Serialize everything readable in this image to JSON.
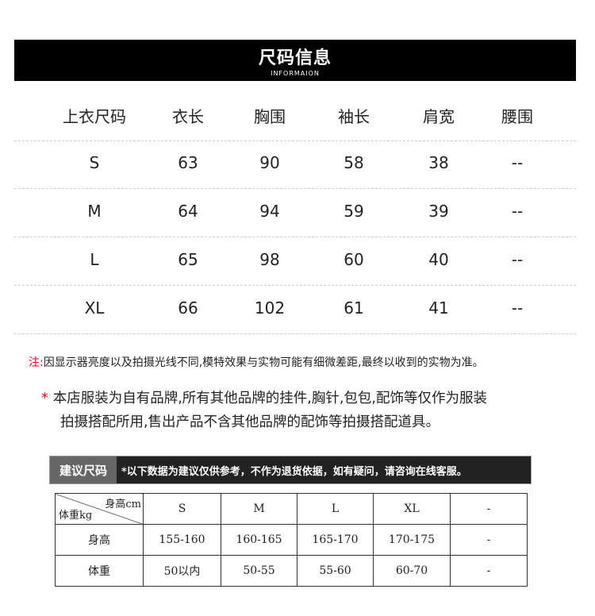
{
  "banner": {
    "title": "尺码信息",
    "subtitle": "INFORMAION"
  },
  "size_table": {
    "headers": [
      "上衣尺码",
      "衣长",
      "胸围",
      "袖长",
      "肩宽",
      "腰围"
    ],
    "rows": [
      [
        "S",
        "63",
        "90",
        "58",
        "38",
        "--"
      ],
      [
        "M",
        "64",
        "94",
        "59",
        "39",
        "--"
      ],
      [
        "L",
        "65",
        "98",
        "60",
        "40",
        "--"
      ],
      [
        "XL",
        "66",
        "102",
        "61",
        "41",
        "--"
      ]
    ]
  },
  "note": {
    "label": "注:",
    "text": "因显示器亮度以及拍摄光线不同,模特效果与实物可能有细微差距,最终以收到的实物为准。"
  },
  "disclaimer": {
    "star": "*",
    "line1": "本店服装为自有品牌,所有其他品牌的挂件,胸针,包包,配饰等仅作为服装",
    "line2": "拍摄搭配所用,售出产品不含其他品牌的配饰等拍摄搭配道具。"
  },
  "recommend": {
    "label": "建议尺码",
    "message": "*以下数据为建议仅供参考，不作为退货依据，如有疑问，请咨询在线客服。",
    "corner_top": "身高cm",
    "corner_bottom": "体重kg",
    "headers": [
      "S",
      "M",
      "L",
      "XL",
      "-"
    ],
    "rows": [
      {
        "label": "身高",
        "values": [
          "155-160",
          "160-165",
          "165-170",
          "170-175",
          "-"
        ]
      },
      {
        "label": "体重",
        "values": [
          "50以内",
          "50-55",
          "55-60",
          "60-70",
          "-"
        ]
      }
    ]
  },
  "colors": {
    "accent_red": "#e60012",
    "banner_bg": "#000000"
  }
}
